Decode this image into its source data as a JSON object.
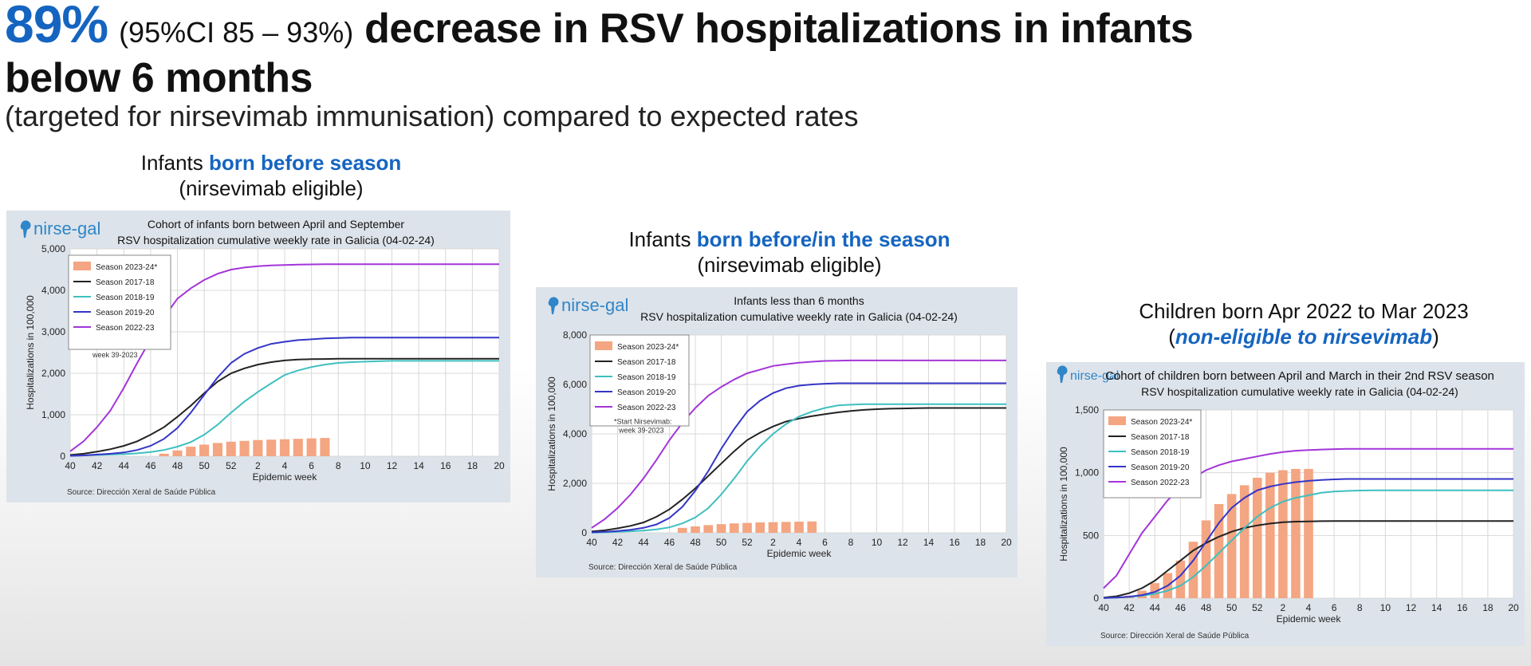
{
  "headline": {
    "percent": "89%",
    "ci": "(95%CI 85 – 93%)",
    "main": "decrease in RSV hospitalizations in infants",
    "line2": "below 6 months",
    "line3": "(targeted for nirsevimab immunisation) compared to expected rates"
  },
  "panels": [
    {
      "title_plain": "Infants ",
      "title_emph": "born before season",
      "title_suffix": "",
      "subtitle": "(nirsevimab eligible)"
    },
    {
      "title_plain": "Infants ",
      "title_emph": "born before/in the season",
      "title_suffix": "",
      "subtitle": "(nirsevimab eligible)"
    },
    {
      "title_plain": "Children born Apr 2022 to Mar 2023",
      "title_emph": "",
      "title_suffix": "",
      "subtitle_open": "(",
      "subtitle_emph": "non-eligible to nirsevimab",
      "subtitle_close": ")"
    }
  ],
  "common": {
    "logo": "nirse-gal",
    "xlabel": "Epidemic week",
    "ylabel": "Hospitalizations in 100,000",
    "source": "Source: Dirección Xeral de Saúde Pública",
    "x_ticks": [
      "40",
      "42",
      "44",
      "46",
      "48",
      "50",
      "52",
      "2",
      "4",
      "6",
      "8",
      "10",
      "12",
      "14",
      "16",
      "18",
      "20"
    ],
    "legend": [
      "Season 2023-24*",
      "Season 2017-18",
      "Season 2018-19",
      "Season 2019-20",
      "Season 2022-23"
    ],
    "colors": {
      "bar": "#f4a582",
      "s2017": "#222222",
      "s2018": "#3fbfbf",
      "s2019": "#3535c8",
      "s2022": "#a335d8",
      "blue": "#1565c0"
    }
  },
  "chart_data": [
    {
      "type": "line",
      "title": "Cohort of infants born between April and September",
      "subtitle": "RSV hospitalization cumulative weekly rate in Galicia (04-02-24)",
      "annotation": "week 39-2023",
      "xlabel": "Epidemic week",
      "ylabel": "Hospitalizations in 100,000",
      "ylim": [
        0,
        5000
      ],
      "y_ticks": [
        0,
        1000,
        2000,
        3000,
        4000,
        5000
      ],
      "y_tick_labels": [
        "0",
        "1,000",
        "2,000",
        "3,000",
        "4,000",
        "5,000"
      ],
      "x": [
        0,
        1,
        2,
        3,
        4,
        5,
        6,
        7,
        8,
        9,
        10,
        11,
        12,
        13,
        14,
        15,
        16,
        17,
        18,
        19,
        20,
        21,
        22,
        23,
        24,
        25,
        26,
        27,
        28,
        29,
        30,
        31,
        32
      ],
      "bars": {
        "name": "Season 2023-24*",
        "x_start": 7,
        "values": [
          60,
          140,
          230,
          280,
          320,
          350,
          370,
          390,
          400,
          410,
          420,
          430,
          440
        ]
      },
      "series": [
        {
          "name": "Season 2017-18",
          "color": "#222222",
          "values": [
            30,
            60,
            110,
            170,
            250,
            360,
            520,
            700,
            950,
            1220,
            1520,
            1800,
            2000,
            2120,
            2210,
            2270,
            2310,
            2330,
            2340,
            2345,
            2350,
            2350,
            2350,
            2350,
            2350,
            2350,
            2350,
            2350,
            2350,
            2350,
            2350,
            2350,
            2350
          ]
        },
        {
          "name": "Season 2018-19",
          "color": "#3fbfbf",
          "values": [
            10,
            20,
            30,
            40,
            50,
            70,
            100,
            150,
            230,
            340,
            520,
            760,
            1050,
            1320,
            1550,
            1760,
            1960,
            2070,
            2150,
            2210,
            2250,
            2270,
            2280,
            2290,
            2300,
            2300,
            2300,
            2300,
            2300,
            2300,
            2300,
            2300,
            2300
          ]
        },
        {
          "name": "Season 2019-20",
          "color": "#3535c8",
          "values": [
            10,
            20,
            40,
            60,
            90,
            150,
            250,
            420,
            680,
            1050,
            1480,
            1900,
            2250,
            2470,
            2610,
            2710,
            2760,
            2800,
            2820,
            2840,
            2850,
            2860,
            2860,
            2860,
            2860,
            2860,
            2860,
            2860,
            2860,
            2860,
            2860,
            2860,
            2860
          ]
        },
        {
          "name": "Season 2022-23",
          "color": "#a335d8",
          "values": [
            120,
            360,
            700,
            1100,
            1650,
            2250,
            2820,
            3350,
            3800,
            4050,
            4250,
            4400,
            4500,
            4550,
            4580,
            4600,
            4610,
            4620,
            4625,
            4630,
            4630,
            4630,
            4630,
            4630,
            4630,
            4630,
            4630,
            4630,
            4630,
            4630,
            4630,
            4630,
            4630
          ]
        }
      ]
    },
    {
      "type": "line",
      "title": "Infants less than 6 months",
      "subtitle": "RSV hospitalization cumulative weekly rate in Galicia (04-02-24)",
      "annotation_line1": "*Start Nirsevimab:",
      "annotation_line2": "week 39-2023",
      "xlabel": "Epidemic week",
      "ylabel": "Hospitalizations in 100,000",
      "ylim": [
        0,
        8000
      ],
      "y_ticks": [
        0,
        2000,
        4000,
        6000,
        8000
      ],
      "y_tick_labels": [
        "0",
        "2,000",
        "4,000",
        "6,000",
        "8,000"
      ],
      "x": [
        0,
        1,
        2,
        3,
        4,
        5,
        6,
        7,
        8,
        9,
        10,
        11,
        12,
        13,
        14,
        15,
        16,
        17,
        18,
        19,
        20,
        21,
        22,
        23,
        24,
        25,
        26,
        27,
        28,
        29,
        30,
        31,
        32
      ],
      "bars": {
        "name": "Season 2023-24*",
        "x_start": 7,
        "values": [
          200,
          260,
          310,
          350,
          380,
          400,
          420,
          430,
          440,
          450,
          460
        ]
      },
      "series": [
        {
          "name": "Season 2017-18",
          "color": "#222222",
          "values": [
            50,
            100,
            180,
            280,
            420,
            650,
            950,
            1350,
            1800,
            2300,
            2800,
            3300,
            3750,
            4050,
            4300,
            4500,
            4620,
            4720,
            4800,
            4870,
            4930,
            4970,
            5000,
            5020,
            5030,
            5040,
            5050,
            5050,
            5050,
            5050,
            5050,
            5050,
            5050
          ]
        },
        {
          "name": "Season 2018-19",
          "color": "#3fbfbf",
          "values": [
            10,
            20,
            40,
            60,
            90,
            140,
            220,
            380,
            620,
            1000,
            1550,
            2200,
            2900,
            3500,
            4000,
            4400,
            4700,
            4900,
            5050,
            5150,
            5180,
            5200,
            5200,
            5200,
            5200,
            5200,
            5200,
            5200,
            5200,
            5200,
            5200,
            5200,
            5200
          ]
        },
        {
          "name": "Season 2019-20",
          "color": "#3535c8",
          "values": [
            20,
            40,
            70,
            120,
            200,
            340,
            600,
            1050,
            1700,
            2500,
            3400,
            4200,
            4900,
            5350,
            5650,
            5850,
            5950,
            6000,
            6030,
            6050,
            6050,
            6050,
            6050,
            6050,
            6050,
            6050,
            6050,
            6050,
            6050,
            6050,
            6050,
            6050,
            6050
          ]
        },
        {
          "name": "Season 2022-23",
          "color": "#a335d8",
          "values": [
            200,
            550,
            1000,
            1550,
            2200,
            2950,
            3750,
            4450,
            5050,
            5550,
            5900,
            6200,
            6450,
            6600,
            6750,
            6820,
            6880,
            6920,
            6950,
            6960,
            6970,
            6970,
            6970,
            6970,
            6970,
            6970,
            6970,
            6970,
            6970,
            6970,
            6970,
            6970,
            6970
          ]
        }
      ]
    },
    {
      "type": "line",
      "title": "Cohort of children born between April and March in their 2nd RSV season",
      "subtitle": "RSV hospitalization cumulative weekly rate in Galicia (04-02-24)",
      "xlabel": "Epidemic week",
      "ylabel": "Hospitalizations in 100,000",
      "ylim": [
        0,
        1500
      ],
      "y_ticks": [
        0,
        500,
        1000,
        1500
      ],
      "y_tick_labels": [
        "0",
        "500",
        "1,000",
        "1,500"
      ],
      "x": [
        0,
        1,
        2,
        3,
        4,
        5,
        6,
        7,
        8,
        9,
        10,
        11,
        12,
        13,
        14,
        15,
        16,
        17,
        18,
        19,
        20,
        21,
        22,
        23,
        24,
        25,
        26,
        27,
        28,
        29,
        30,
        31,
        32
      ],
      "bars": {
        "name": "Season 2023-24*",
        "x_start": 2,
        "values": [
          20,
          60,
          120,
          200,
          300,
          450,
          620,
          750,
          830,
          900,
          960,
          1000,
          1020,
          1030,
          1030
        ]
      },
      "series": [
        {
          "name": "Season 2017-18",
          "color": "#222222",
          "values": [
            5,
            15,
            40,
            80,
            140,
            220,
            300,
            380,
            440,
            490,
            530,
            560,
            580,
            595,
            605,
            610,
            612,
            614,
            615,
            615,
            615,
            615,
            615,
            615,
            615,
            615,
            615,
            615,
            615,
            615,
            615,
            615,
            615
          ]
        },
        {
          "name": "Season 2018-19",
          "color": "#3fbfbf",
          "values": [
            2,
            5,
            10,
            20,
            35,
            60,
            100,
            170,
            260,
            360,
            460,
            560,
            650,
            720,
            770,
            800,
            820,
            840,
            850,
            855,
            858,
            860,
            860,
            860,
            860,
            860,
            860,
            860,
            860,
            860,
            860,
            860,
            860
          ]
        },
        {
          "name": "Season 2019-20",
          "color": "#3535c8",
          "values": [
            2,
            5,
            12,
            25,
            50,
            100,
            180,
            300,
            450,
            600,
            720,
            800,
            860,
            890,
            910,
            925,
            935,
            942,
            947,
            950,
            950,
            950,
            950,
            950,
            950,
            950,
            950,
            950,
            950,
            950,
            950,
            950,
            950
          ]
        },
        {
          "name": "Season 2022-23",
          "color": "#a335d8",
          "values": [
            80,
            180,
            350,
            520,
            650,
            780,
            880,
            960,
            1020,
            1060,
            1090,
            1110,
            1130,
            1150,
            1165,
            1175,
            1180,
            1185,
            1188,
            1190,
            1190,
            1190,
            1190,
            1190,
            1190,
            1190,
            1190,
            1190,
            1190,
            1190,
            1190,
            1190,
            1190
          ]
        }
      ]
    }
  ]
}
